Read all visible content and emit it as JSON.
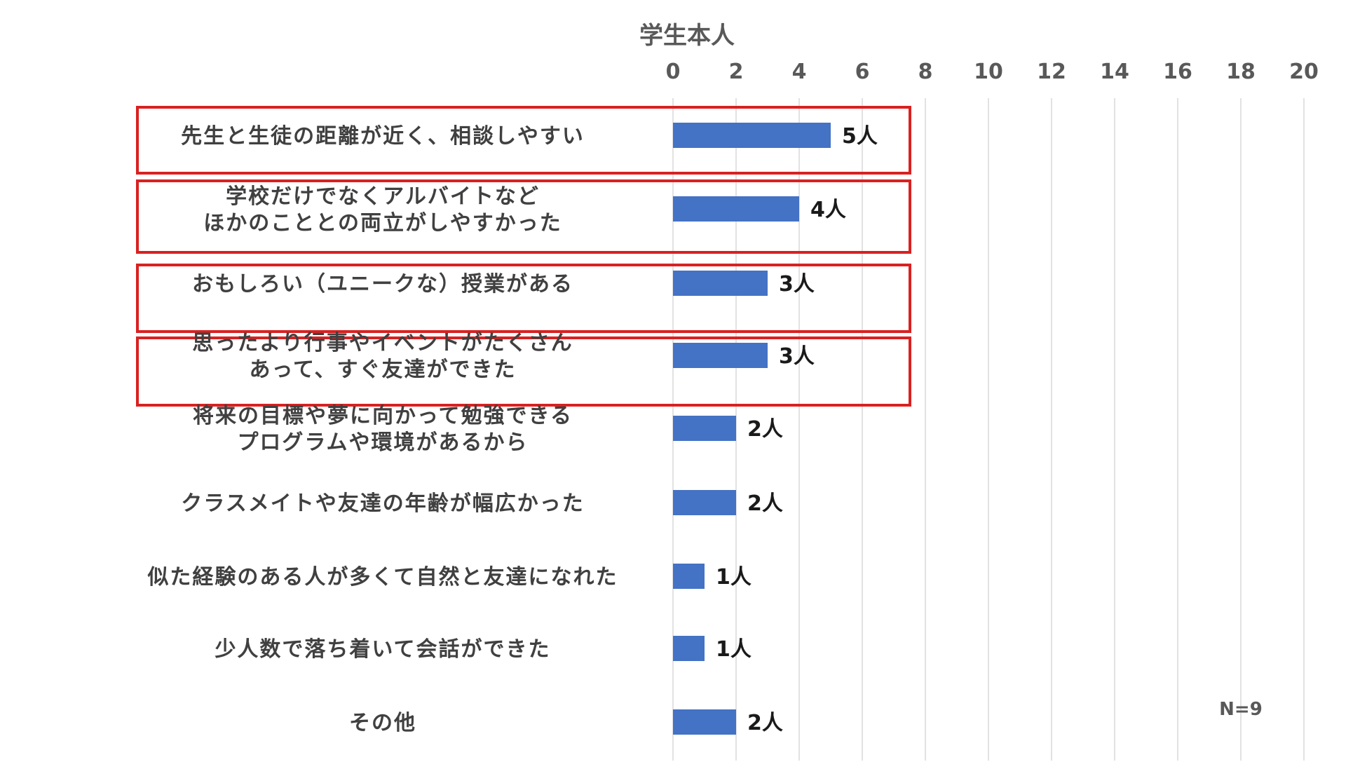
{
  "chart_data": {
    "type": "bar",
    "orientation": "horizontal",
    "title": "学生本人",
    "x_axis_position": "top",
    "xlim": [
      0,
      20
    ],
    "x_ticks": [
      0,
      2,
      4,
      6,
      8,
      10,
      12,
      14,
      16,
      18,
      20
    ],
    "grid": true,
    "categories": [
      [
        "先生と生徒の距離が近く、相談しやすい"
      ],
      [
        "学校だけでなくアルバイトなど",
        "ほかのこととの両立がしやすかった"
      ],
      [
        "おもしろい（ユニークな）授業がある"
      ],
      [
        "思ったより行事やイベントがたくさん",
        "あって、すぐ友達ができた"
      ],
      [
        "将来の目標や夢に向かって勉強できる",
        "プログラムや環境があるから"
      ],
      [
        "クラスメイトや友達の年齢が幅広かった"
      ],
      [
        "似た経験のある人が多くて自然と友達になれた"
      ],
      [
        "少人数で落ち着いて会話ができた"
      ],
      [
        "その他"
      ]
    ],
    "values": [
      5,
      4,
      3,
      3,
      2,
      2,
      1,
      1,
      2
    ],
    "data_labels": [
      "5人",
      "4人",
      "3人",
      "3人",
      "2人",
      "2人",
      "1人",
      "1人",
      "2人"
    ],
    "highlighted_categories": [
      0,
      1,
      2,
      3
    ],
    "bar_color": "#4472c4",
    "highlight_color": "#d92121",
    "annotation": "N=9"
  }
}
